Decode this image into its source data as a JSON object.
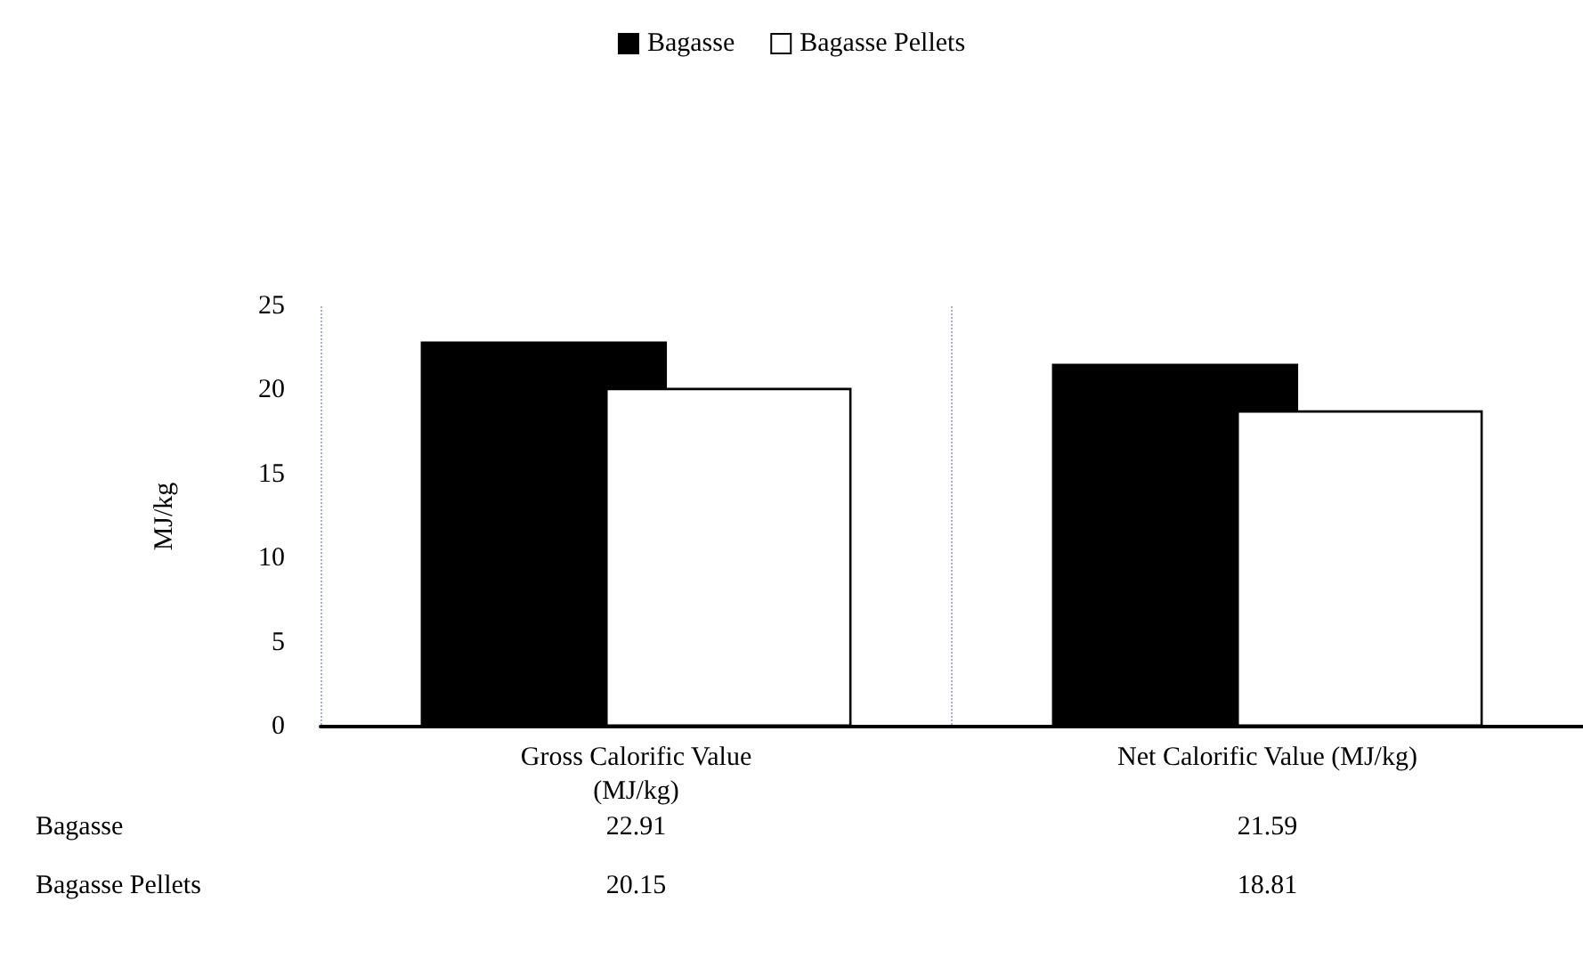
{
  "chart_data": {
    "type": "bar",
    "ylabel": "MJ/kg",
    "categories": [
      "Gross Calorific Value\n(MJ/kg)",
      "Net Calorific Value (MJ/kg)"
    ],
    "series": [
      {
        "name": "Bagasse",
        "color": "#000000",
        "values": [
          22.91,
          21.59
        ]
      },
      {
        "name": "Bagasse Pellets",
        "color": "#ffffff",
        "values": [
          20.15,
          18.81
        ]
      }
    ],
    "ylim": [
      0,
      25
    ],
    "yticks": [
      0,
      5,
      10,
      15,
      20,
      25
    ],
    "grid": "x",
    "legend": "top",
    "data_labels": true
  }
}
